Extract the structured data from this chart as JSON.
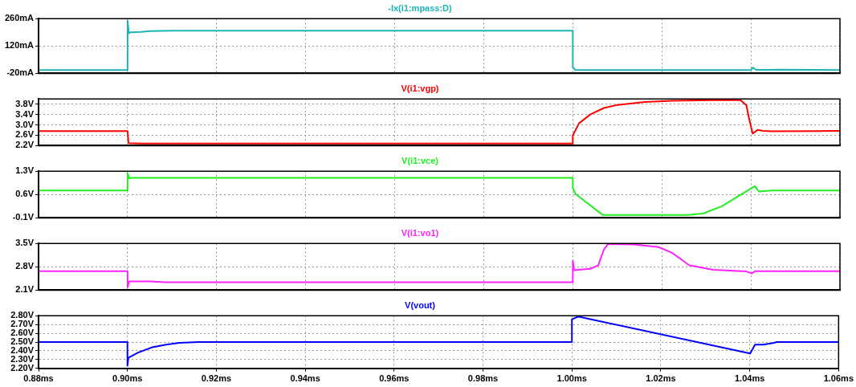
{
  "chart_data": [
    {
      "type": "line",
      "title": "-Ix(i1:mpass:D)",
      "x": [
        0.88,
        0.9,
        0.9,
        0.9003,
        0.9006,
        0.903,
        0.905,
        0.91,
        0.95,
        1.0,
        1.0,
        1.0006,
        1.04,
        1.0404,
        1.0412,
        1.045,
        1.046,
        1.06
      ],
      "series": [
        {
          "color": "#1fb4b4",
          "values": [
            -3,
            -3,
            250,
            185,
            190,
            192,
            196,
            198,
            198,
            198,
            10,
            -3,
            -3,
            10,
            -2,
            -2,
            -1,
            -3
          ]
        }
      ],
      "xlim": [
        0.88,
        1.06
      ],
      "xticks": [
        {
          "value": 0.88,
          "label": null
        },
        {
          "value": 0.9,
          "label": null
        },
        {
          "value": 0.92,
          "label": null
        },
        {
          "value": 0.94,
          "label": null
        },
        {
          "value": 0.96,
          "label": null
        },
        {
          "value": 0.98,
          "label": null
        },
        {
          "value": 1.0,
          "label": null
        },
        {
          "value": 1.02,
          "label": null
        },
        {
          "value": 1.04,
          "label": null
        },
        {
          "value": 1.06,
          "label": null
        }
      ],
      "ylim": [
        -20,
        260
      ],
      "yticks": [
        {
          "value": -20,
          "label": "-20mA"
        },
        {
          "value": 120,
          "label": "120mA"
        },
        {
          "value": 260,
          "label": "260mA"
        }
      ],
      "grid": true,
      "tick_labels": "y"
    },
    {
      "type": "line",
      "title": "V(i1:vgp)",
      "x": [
        0.88,
        0.9,
        0.9002,
        0.903,
        1.0,
        1.0,
        1.0014,
        1.0039,
        1.007,
        1.01,
        1.0162,
        1.0223,
        1.0346,
        1.0377,
        1.039,
        1.0396,
        1.0404,
        1.0415,
        1.0427,
        1.0445,
        1.06
      ],
      "series": [
        {
          "color": "#ff0000",
          "values": [
            2.76,
            2.76,
            2.3,
            2.28,
            2.28,
            2.6,
            3.06,
            3.4,
            3.65,
            3.77,
            3.88,
            3.93,
            3.96,
            3.95,
            3.75,
            3.23,
            2.66,
            2.81,
            2.77,
            2.75,
            2.77
          ]
        }
      ],
      "xlim": [
        0.88,
        1.06
      ],
      "xticks": [
        {
          "value": 0.88,
          "label": null
        },
        {
          "value": 0.9,
          "label": null
        },
        {
          "value": 0.92,
          "label": null
        },
        {
          "value": 0.94,
          "label": null
        },
        {
          "value": 0.96,
          "label": null
        },
        {
          "value": 0.98,
          "label": null
        },
        {
          "value": 1.0,
          "label": null
        },
        {
          "value": 1.02,
          "label": null
        },
        {
          "value": 1.04,
          "label": null
        },
        {
          "value": 1.06,
          "label": null
        }
      ],
      "ylim": [
        2.2,
        4.0
      ],
      "yticks": [
        {
          "value": 2.2,
          "label": "2.2V"
        },
        {
          "value": 2.6,
          "label": "2.6V"
        },
        {
          "value": 3.0,
          "label": "3.0V"
        },
        {
          "value": 3.4,
          "label": "3.4V"
        },
        {
          "value": 3.8,
          "label": "3.8V"
        }
      ],
      "grid": true,
      "tick_labels": "y"
    },
    {
      "type": "line",
      "title": "V(i1:vce)",
      "x": [
        0.88,
        0.9,
        0.9,
        0.9004,
        0.9006,
        0.905,
        1.0,
        1.0,
        1.0006,
        1.0067,
        1.0258,
        1.0292,
        1.0335,
        1.0373,
        1.0409,
        1.0418,
        1.0447,
        1.06
      ],
      "series": [
        {
          "color": "#22ee22",
          "values": [
            0.72,
            0.72,
            1.24,
            1.08,
            1.1,
            1.1,
            1.1,
            0.8,
            0.62,
            -0.01,
            -0.01,
            0.03,
            0.25,
            0.56,
            0.85,
            0.69,
            0.72,
            0.72
          ]
        }
      ],
      "xlim": [
        0.88,
        1.06
      ],
      "xticks": [
        {
          "value": 0.88,
          "label": null
        },
        {
          "value": 0.9,
          "label": null
        },
        {
          "value": 0.92,
          "label": null
        },
        {
          "value": 0.94,
          "label": null
        },
        {
          "value": 0.96,
          "label": null
        },
        {
          "value": 0.98,
          "label": null
        },
        {
          "value": 1.0,
          "label": null
        },
        {
          "value": 1.02,
          "label": null
        },
        {
          "value": 1.04,
          "label": null
        },
        {
          "value": 1.06,
          "label": null
        }
      ],
      "ylim": [
        -0.1,
        1.3
      ],
      "yticks": [
        {
          "value": -0.1,
          "label": "-0.1V"
        },
        {
          "value": 0.6,
          "label": "0.6V"
        },
        {
          "value": 1.3,
          "label": "1.3V"
        }
      ],
      "grid": true,
      "tick_labels": "y"
    },
    {
      "type": "line",
      "title": "V(i1:vo1)",
      "x": [
        0.88,
        0.9,
        0.9,
        0.9004,
        0.905,
        0.9085,
        1.0,
        1.0,
        1.0003,
        1.0039,
        1.0057,
        1.007,
        1.0079,
        1.0137,
        1.0193,
        1.0223,
        1.0249,
        1.0261,
        1.0315,
        1.039,
        1.0402,
        1.0409,
        1.06
      ],
      "series": [
        {
          "color": "#ff22ff",
          "values": [
            2.67,
            2.67,
            2.19,
            2.36,
            2.36,
            2.34,
            2.34,
            2.98,
            2.7,
            2.74,
            2.84,
            3.32,
            3.48,
            3.47,
            3.39,
            3.22,
            2.97,
            2.85,
            2.71,
            2.66,
            2.6,
            2.67,
            2.67
          ]
        }
      ],
      "xlim": [
        0.88,
        1.06
      ],
      "xticks": [
        {
          "value": 0.88,
          "label": null
        },
        {
          "value": 0.9,
          "label": null
        },
        {
          "value": 0.92,
          "label": null
        },
        {
          "value": 0.94,
          "label": null
        },
        {
          "value": 0.96,
          "label": null
        },
        {
          "value": 0.98,
          "label": null
        },
        {
          "value": 1.0,
          "label": null
        },
        {
          "value": 1.02,
          "label": null
        },
        {
          "value": 1.04,
          "label": null
        },
        {
          "value": 1.06,
          "label": null
        }
      ],
      "ylim": [
        2.1,
        3.5
      ],
      "yticks": [
        {
          "value": 2.1,
          "label": "2.1V"
        },
        {
          "value": 2.8,
          "label": "2.8V"
        },
        {
          "value": 3.5,
          "label": "3.5V"
        }
      ],
      "grid": true,
      "tick_labels": "y"
    },
    {
      "type": "line",
      "title": "V(vout)",
      "x": [
        0.88,
        0.9,
        0.9,
        0.9002,
        0.9024,
        0.9056,
        0.9087,
        0.9117,
        0.916,
        1.0,
        1.0,
        1.0014,
        1.0401,
        1.0412,
        1.043,
        1.0455,
        1.046,
        1.06
      ],
      "series": [
        {
          "color": "#0000ff",
          "values": [
            2.5,
            2.5,
            2.23,
            2.32,
            2.38,
            2.44,
            2.47,
            2.49,
            2.5,
            2.5,
            2.76,
            2.79,
            2.37,
            2.47,
            2.47,
            2.49,
            2.5,
            2.5
          ]
        }
      ],
      "xlim": [
        0.88,
        1.06
      ],
      "xticks": [
        {
          "value": 0.88,
          "label": "0.88ms"
        },
        {
          "value": 0.9,
          "label": "0.90ms"
        },
        {
          "value": 0.92,
          "label": "0.92ms"
        },
        {
          "value": 0.94,
          "label": "0.94ms"
        },
        {
          "value": 0.96,
          "label": "0.96ms"
        },
        {
          "value": 0.98,
          "label": "0.98ms"
        },
        {
          "value": 1.0,
          "label": "1.00ms"
        },
        {
          "value": 1.02,
          "label": "1.02ms"
        },
        {
          "value": 1.04,
          "label": "1.04ms"
        },
        {
          "value": 1.06,
          "label": "1.06ms"
        }
      ],
      "ylim": [
        2.2,
        2.8
      ],
      "yticks": [
        {
          "value": 2.2,
          "label": "2.20V"
        },
        {
          "value": 2.3,
          "label": "2.30V"
        },
        {
          "value": 2.4,
          "label": "2.40V"
        },
        {
          "value": 2.5,
          "label": "2.50V"
        },
        {
          "value": 2.6,
          "label": "2.60V"
        },
        {
          "value": 2.7,
          "label": "2.70V"
        },
        {
          "value": 2.8,
          "label": "2.80V"
        }
      ],
      "grid": true
    }
  ]
}
